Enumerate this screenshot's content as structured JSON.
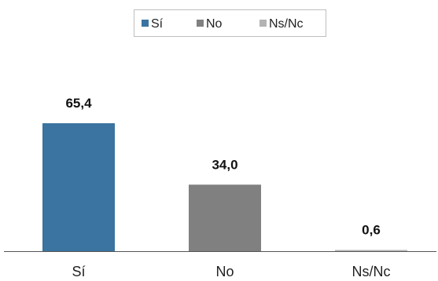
{
  "chart_data": {
    "type": "bar",
    "categories": [
      "Sí",
      "No",
      "Ns/Nc"
    ],
    "values": [
      65.4,
      34.0,
      0.6
    ],
    "value_labels": [
      "65,4",
      "34,0",
      "0,6"
    ],
    "colors": [
      "#3b74a0",
      "#808080",
      "#b3b3b3"
    ],
    "legend": {
      "position": "top",
      "entries": [
        "Sí",
        "No",
        "Ns/Nc"
      ]
    },
    "ylim": [
      0,
      100
    ],
    "grid": false,
    "title": "",
    "xlabel": "",
    "ylabel": ""
  }
}
